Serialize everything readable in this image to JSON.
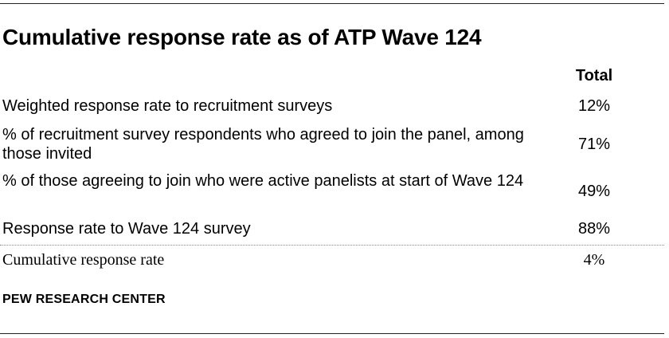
{
  "title": "Cumulative response rate as of ATP Wave 124",
  "column_header": "Total",
  "rows": [
    {
      "label": "Weighted response rate to recruitment surveys",
      "value": "12%"
    },
    {
      "label": "% of recruitment survey respondents who agreed to join the panel, among those invited",
      "value": "71%"
    },
    {
      "label": "% of those agreeing to join who were active panelists at start of Wave 124",
      "value": "49%"
    },
    {
      "label": "Response rate to Wave 124 survey",
      "value": "88%"
    },
    {
      "label": "Cumulative response rate",
      "value": "4%"
    }
  ],
  "source": "PEW RESEARCH CENTER"
}
